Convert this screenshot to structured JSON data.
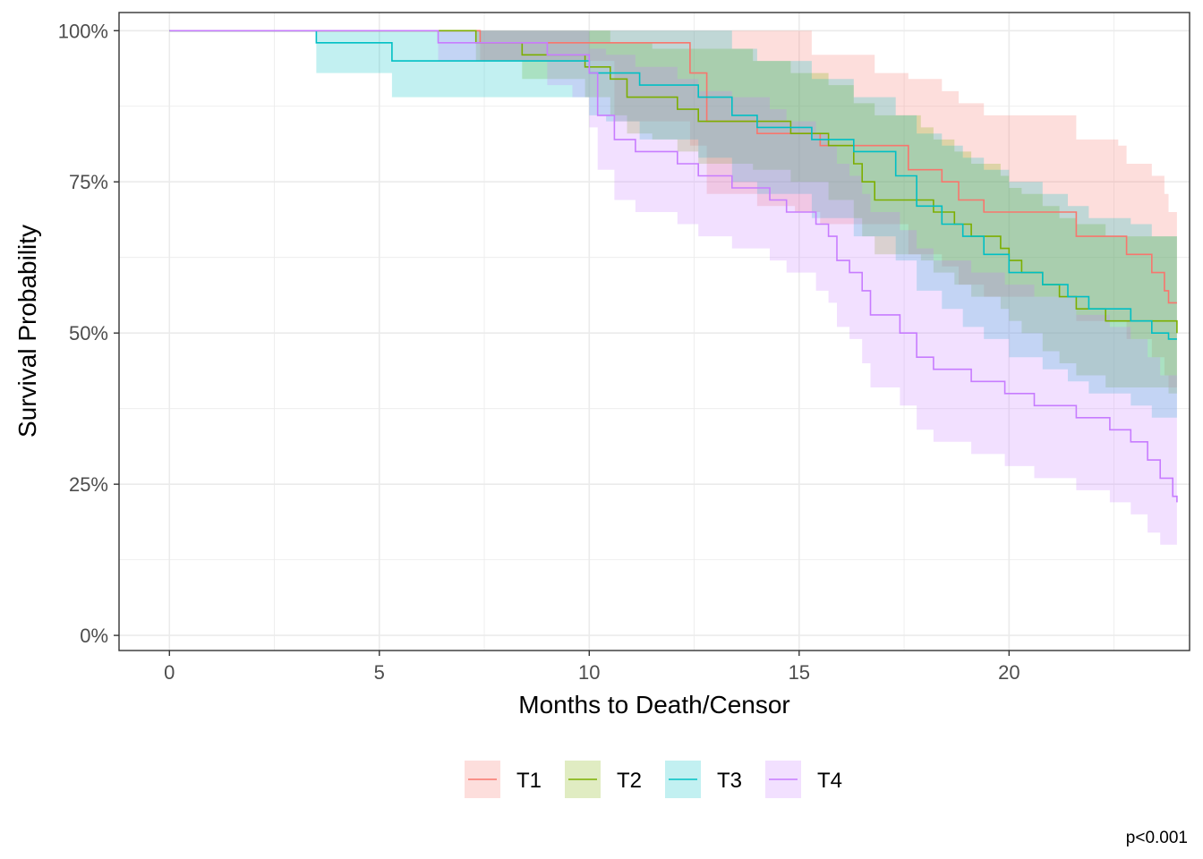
{
  "chart_data": {
    "type": "line",
    "subtype": "kaplan-meier step curves with confidence bands",
    "xlabel": "Months to Death/Censor",
    "ylabel": "Survival Probability",
    "xlim": [
      -1.2,
      24.3
    ],
    "ylim": [
      -0.025,
      1.03
    ],
    "x_ticks": [
      0,
      5,
      10,
      15,
      20
    ],
    "y_ticks": [
      0,
      0.25,
      0.5,
      0.75,
      1.0
    ],
    "y_tick_labels": [
      "0%",
      "25%",
      "50%",
      "75%",
      "100%"
    ],
    "grid": true,
    "legend_position": "bottom",
    "annotation": "p<0.001",
    "series": [
      {
        "name": "T1",
        "color": "#F8766D",
        "steps": [
          [
            0,
            1.0
          ],
          [
            7.4,
            0.98
          ],
          [
            8.7,
            0.98
          ],
          [
            12.4,
            0.93
          ],
          [
            12.8,
            0.85
          ],
          [
            14.0,
            0.83
          ],
          [
            14.9,
            0.83
          ],
          [
            15.5,
            0.81
          ],
          [
            17.4,
            0.81
          ],
          [
            17.6,
            0.77
          ],
          [
            18.4,
            0.75
          ],
          [
            18.8,
            0.72
          ],
          [
            19.4,
            0.7
          ],
          [
            20.6,
            0.7
          ],
          [
            21.6,
            0.66
          ],
          [
            22.6,
            0.66
          ],
          [
            22.8,
            0.63
          ],
          [
            23.4,
            0.6
          ],
          [
            23.7,
            0.57
          ],
          [
            23.8,
            0.55
          ],
          [
            24.0,
            0.55
          ]
        ],
        "lower": [
          [
            0,
            1.0
          ],
          [
            7.4,
            0.95
          ],
          [
            8.7,
            0.95
          ],
          [
            10.6,
            0.85
          ],
          [
            12.4,
            0.81
          ],
          [
            12.8,
            0.73
          ],
          [
            14.0,
            0.71
          ],
          [
            14.9,
            0.7
          ],
          [
            15.5,
            0.68
          ],
          [
            17.4,
            0.68
          ],
          [
            17.6,
            0.63
          ],
          [
            18.4,
            0.61
          ],
          [
            18.8,
            0.58
          ],
          [
            19.4,
            0.56
          ],
          [
            20.6,
            0.56
          ],
          [
            21.6,
            0.52
          ],
          [
            22.6,
            0.52
          ],
          [
            22.8,
            0.49
          ],
          [
            23.4,
            0.46
          ],
          [
            23.7,
            0.43
          ],
          [
            23.8,
            0.41
          ],
          [
            24.0,
            0.41
          ]
        ],
        "upper": [
          [
            0,
            1.0
          ],
          [
            7.4,
            1.0
          ],
          [
            15.0,
            1.0
          ],
          [
            15.3,
            0.96
          ],
          [
            16.8,
            0.93
          ],
          [
            17.6,
            0.92
          ],
          [
            18.4,
            0.9
          ],
          [
            18.8,
            0.88
          ],
          [
            19.4,
            0.86
          ],
          [
            20.6,
            0.86
          ],
          [
            21.6,
            0.82
          ],
          [
            22.6,
            0.81
          ],
          [
            22.8,
            0.78
          ],
          [
            23.4,
            0.76
          ],
          [
            23.7,
            0.73
          ],
          [
            23.8,
            0.7
          ],
          [
            24.0,
            0.7
          ]
        ]
      },
      {
        "name": "T2",
        "color": "#7CAE00",
        "steps": [
          [
            0,
            1.0
          ],
          [
            7.3,
            0.98
          ],
          [
            8.4,
            0.96
          ],
          [
            9.9,
            0.94
          ],
          [
            10.5,
            0.92
          ],
          [
            10.9,
            0.89
          ],
          [
            11.5,
            0.89
          ],
          [
            12.1,
            0.87
          ],
          [
            12.6,
            0.85
          ],
          [
            13.9,
            0.85
          ],
          [
            14.8,
            0.83
          ],
          [
            15.7,
            0.81
          ],
          [
            16.3,
            0.78
          ],
          [
            16.5,
            0.75
          ],
          [
            16.8,
            0.72
          ],
          [
            17.9,
            0.72
          ],
          [
            18.2,
            0.7
          ],
          [
            18.7,
            0.68
          ],
          [
            19.1,
            0.66
          ],
          [
            19.8,
            0.64
          ],
          [
            20.0,
            0.62
          ],
          [
            20.3,
            0.6
          ],
          [
            20.8,
            0.58
          ],
          [
            21.2,
            0.56
          ],
          [
            21.6,
            0.54
          ],
          [
            22.3,
            0.52
          ],
          [
            23.8,
            0.52
          ],
          [
            24.0,
            0.5
          ]
        ],
        "lower": [
          [
            0,
            1.0
          ],
          [
            7.3,
            0.95
          ],
          [
            8.4,
            0.92
          ],
          [
            9.9,
            0.89
          ],
          [
            10.5,
            0.86
          ],
          [
            10.9,
            0.83
          ],
          [
            11.5,
            0.82
          ],
          [
            12.1,
            0.8
          ],
          [
            12.6,
            0.78
          ],
          [
            13.9,
            0.77
          ],
          [
            14.8,
            0.75
          ],
          [
            15.7,
            0.72
          ],
          [
            16.3,
            0.69
          ],
          [
            16.5,
            0.66
          ],
          [
            16.8,
            0.63
          ],
          [
            17.9,
            0.62
          ],
          [
            18.2,
            0.6
          ],
          [
            18.7,
            0.58
          ],
          [
            19.1,
            0.56
          ],
          [
            19.8,
            0.54
          ],
          [
            20.0,
            0.52
          ],
          [
            20.3,
            0.5
          ],
          [
            20.8,
            0.47
          ],
          [
            21.2,
            0.45
          ],
          [
            21.6,
            0.43
          ],
          [
            22.3,
            0.41
          ],
          [
            23.8,
            0.4
          ],
          [
            24.0,
            0.38
          ]
        ],
        "upper": [
          [
            0,
            1.0
          ],
          [
            10.0,
            1.0
          ],
          [
            10.5,
            0.98
          ],
          [
            11.5,
            0.97
          ],
          [
            13.9,
            0.95
          ],
          [
            14.8,
            0.93
          ],
          [
            15.7,
            0.91
          ],
          [
            16.3,
            0.88
          ],
          [
            16.8,
            0.86
          ],
          [
            17.9,
            0.84
          ],
          [
            18.2,
            0.82
          ],
          [
            18.7,
            0.8
          ],
          [
            19.1,
            0.78
          ],
          [
            19.8,
            0.76
          ],
          [
            20.0,
            0.74
          ],
          [
            20.3,
            0.73
          ],
          [
            20.8,
            0.71
          ],
          [
            21.2,
            0.69
          ],
          [
            21.6,
            0.68
          ],
          [
            22.3,
            0.66
          ],
          [
            24.0,
            0.65
          ]
        ]
      },
      {
        "name": "T3",
        "color": "#00BFC4",
        "steps": [
          [
            0,
            1.0
          ],
          [
            3.5,
            0.98
          ],
          [
            5.3,
            0.95
          ],
          [
            9.3,
            0.95
          ],
          [
            10.0,
            0.93
          ],
          [
            10.4,
            0.93
          ],
          [
            11.2,
            0.91
          ],
          [
            12.6,
            0.89
          ],
          [
            13.4,
            0.86
          ],
          [
            14.0,
            0.84
          ],
          [
            15.3,
            0.82
          ],
          [
            16.3,
            0.8
          ],
          [
            17.3,
            0.76
          ],
          [
            17.8,
            0.71
          ],
          [
            18.4,
            0.68
          ],
          [
            18.9,
            0.66
          ],
          [
            19.4,
            0.63
          ],
          [
            20.0,
            0.6
          ],
          [
            20.8,
            0.58
          ],
          [
            21.4,
            0.56
          ],
          [
            21.9,
            0.54
          ],
          [
            22.9,
            0.52
          ],
          [
            23.4,
            0.5
          ],
          [
            23.8,
            0.49
          ],
          [
            24.0,
            0.49
          ]
        ],
        "lower": [
          [
            0,
            1.0
          ],
          [
            3.5,
            0.93
          ],
          [
            5.3,
            0.89
          ],
          [
            9.3,
            0.89
          ],
          [
            10.0,
            0.86
          ],
          [
            10.4,
            0.85
          ],
          [
            11.2,
            0.82
          ],
          [
            12.6,
            0.79
          ],
          [
            13.4,
            0.75
          ],
          [
            14.0,
            0.73
          ],
          [
            15.3,
            0.69
          ],
          [
            16.3,
            0.66
          ],
          [
            17.3,
            0.62
          ],
          [
            17.8,
            0.57
          ],
          [
            18.4,
            0.54
          ],
          [
            18.9,
            0.51
          ],
          [
            19.4,
            0.49
          ],
          [
            20.0,
            0.46
          ],
          [
            20.8,
            0.44
          ],
          [
            21.4,
            0.42
          ],
          [
            21.9,
            0.4
          ],
          [
            22.9,
            0.38
          ],
          [
            23.4,
            0.36
          ],
          [
            24.0,
            0.36
          ]
        ],
        "upper": [
          [
            0,
            1.0
          ],
          [
            12.8,
            1.0
          ],
          [
            13.4,
            0.97
          ],
          [
            14.0,
            0.95
          ],
          [
            15.3,
            0.92
          ],
          [
            16.3,
            0.89
          ],
          [
            17.3,
            0.86
          ],
          [
            17.8,
            0.83
          ],
          [
            18.4,
            0.81
          ],
          [
            18.9,
            0.79
          ],
          [
            19.4,
            0.77
          ],
          [
            20.0,
            0.75
          ],
          [
            20.8,
            0.73
          ],
          [
            21.4,
            0.71
          ],
          [
            21.9,
            0.69
          ],
          [
            22.9,
            0.68
          ],
          [
            23.4,
            0.66
          ],
          [
            24.0,
            0.65
          ]
        ]
      },
      {
        "name": "T4",
        "color": "#C77CFF",
        "steps": [
          [
            0,
            1.0
          ],
          [
            6.4,
            0.98
          ],
          [
            9.0,
            0.96
          ],
          [
            9.6,
            0.96
          ],
          [
            10.0,
            0.93
          ],
          [
            10.2,
            0.86
          ],
          [
            10.6,
            0.82
          ],
          [
            11.1,
            0.8
          ],
          [
            12.1,
            0.78
          ],
          [
            12.6,
            0.76
          ],
          [
            13.4,
            0.74
          ],
          [
            14.3,
            0.72
          ],
          [
            14.7,
            0.7
          ],
          [
            15.4,
            0.68
          ],
          [
            15.7,
            0.66
          ],
          [
            15.9,
            0.62
          ],
          [
            16.2,
            0.6
          ],
          [
            16.5,
            0.57
          ],
          [
            16.7,
            0.53
          ],
          [
            17.4,
            0.5
          ],
          [
            17.8,
            0.46
          ],
          [
            18.2,
            0.44
          ],
          [
            19.1,
            0.42
          ],
          [
            19.9,
            0.4
          ],
          [
            20.6,
            0.38
          ],
          [
            21.6,
            0.36
          ],
          [
            22.4,
            0.34
          ],
          [
            22.9,
            0.32
          ],
          [
            23.3,
            0.29
          ],
          [
            23.6,
            0.26
          ],
          [
            23.9,
            0.23
          ],
          [
            24.0,
            0.22
          ]
        ],
        "lower": [
          [
            0,
            1.0
          ],
          [
            6.4,
            0.95
          ],
          [
            9.0,
            0.91
          ],
          [
            9.6,
            0.89
          ],
          [
            10.0,
            0.84
          ],
          [
            10.2,
            0.77
          ],
          [
            10.6,
            0.72
          ],
          [
            11.1,
            0.7
          ],
          [
            12.1,
            0.68
          ],
          [
            12.6,
            0.66
          ],
          [
            13.4,
            0.64
          ],
          [
            14.3,
            0.62
          ],
          [
            14.7,
            0.6
          ],
          [
            15.4,
            0.57
          ],
          [
            15.7,
            0.55
          ],
          [
            15.9,
            0.51
          ],
          [
            16.2,
            0.49
          ],
          [
            16.5,
            0.45
          ],
          [
            16.7,
            0.41
          ],
          [
            17.4,
            0.38
          ],
          [
            17.8,
            0.34
          ],
          [
            18.2,
            0.32
          ],
          [
            19.1,
            0.3
          ],
          [
            19.9,
            0.28
          ],
          [
            20.6,
            0.26
          ],
          [
            21.6,
            0.24
          ],
          [
            22.4,
            0.22
          ],
          [
            22.9,
            0.2
          ],
          [
            23.3,
            0.17
          ],
          [
            23.6,
            0.15
          ],
          [
            24.0,
            0.13
          ]
        ],
        "upper": [
          [
            0,
            1.0
          ],
          [
            9.6,
            1.0
          ],
          [
            10.0,
            0.97
          ],
          [
            10.4,
            0.96
          ],
          [
            11.1,
            0.94
          ],
          [
            12.1,
            0.92
          ],
          [
            12.6,
            0.9
          ],
          [
            13.4,
            0.89
          ],
          [
            14.3,
            0.87
          ],
          [
            14.7,
            0.85
          ],
          [
            15.4,
            0.83
          ],
          [
            15.7,
            0.81
          ],
          [
            15.9,
            0.78
          ],
          [
            16.2,
            0.76
          ],
          [
            16.5,
            0.73
          ],
          [
            16.7,
            0.7
          ],
          [
            17.4,
            0.67
          ],
          [
            17.8,
            0.64
          ],
          [
            18.2,
            0.62
          ],
          [
            19.1,
            0.6
          ],
          [
            19.9,
            0.58
          ],
          [
            20.6,
            0.56
          ],
          [
            21.6,
            0.53
          ],
          [
            22.4,
            0.51
          ],
          [
            22.9,
            0.49
          ],
          [
            23.3,
            0.46
          ],
          [
            23.6,
            0.43
          ],
          [
            24.0,
            0.36
          ]
        ]
      }
    ]
  }
}
